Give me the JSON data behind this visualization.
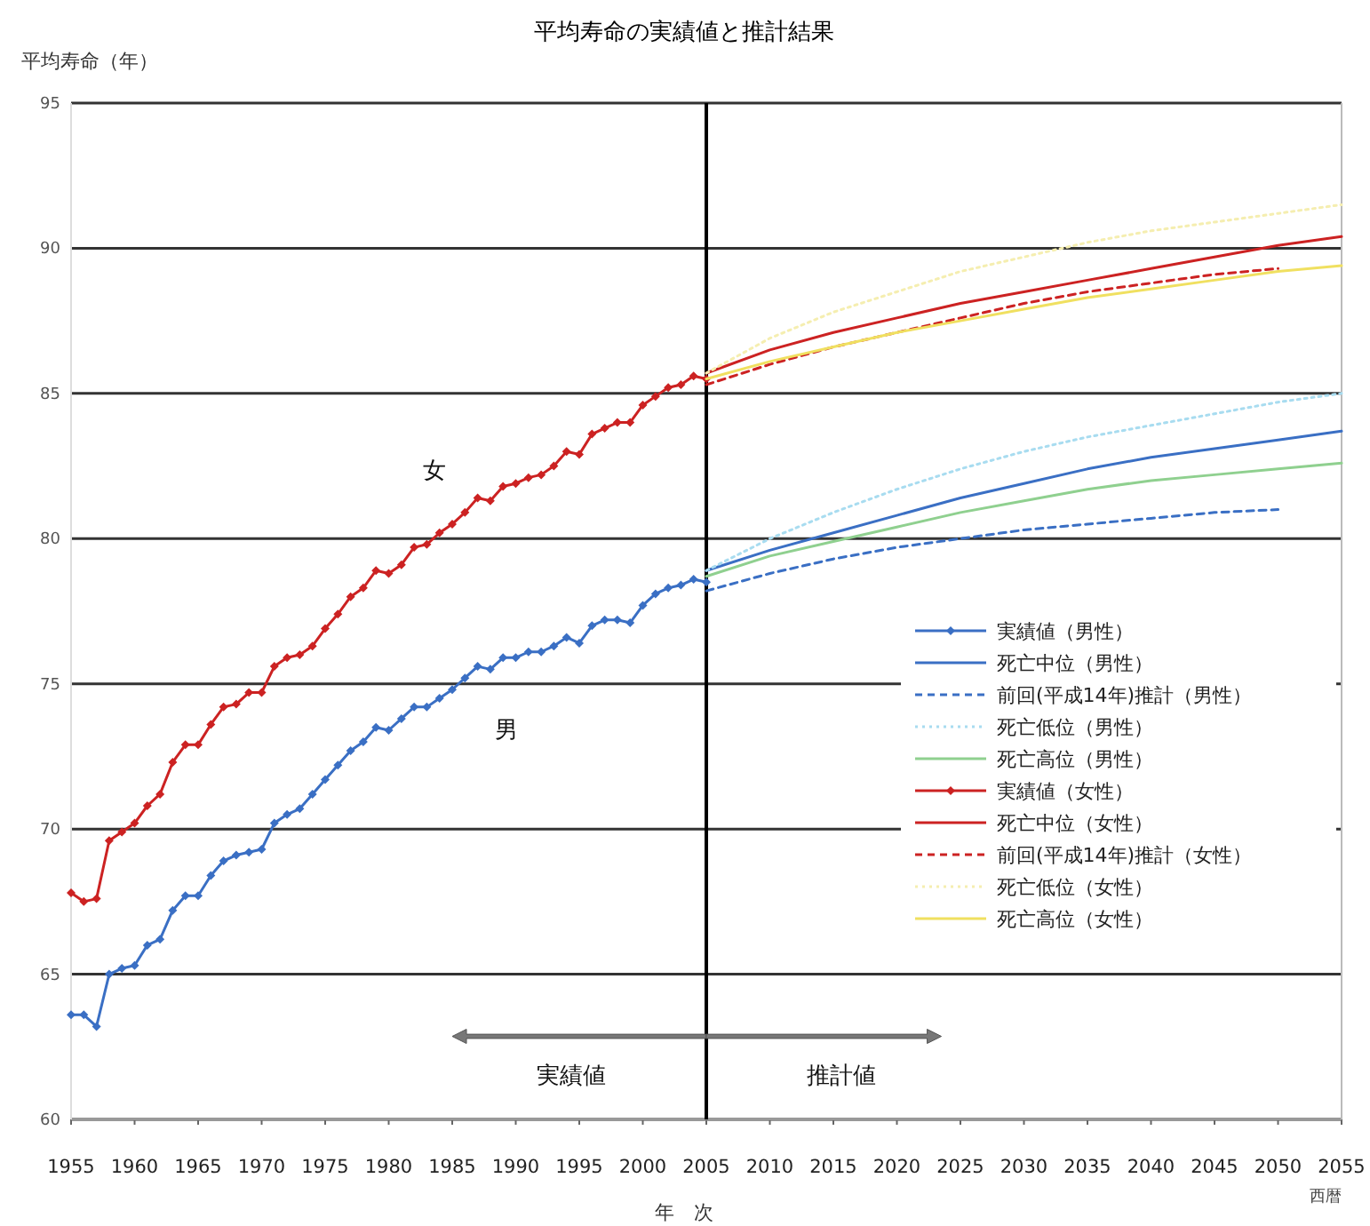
{
  "chart_data": {
    "type": "line",
    "title": "平均寿命の実績値と推計結果",
    "ylabel": "平均寿命（年）",
    "xlabel": "年　次",
    "xlim": [
      1955,
      2055
    ],
    "xticks": [
      1955,
      1960,
      1965,
      1970,
      1975,
      1980,
      1985,
      1990,
      1995,
      2000,
      2005,
      2010,
      2015,
      2020,
      2025,
      2030,
      2035,
      2040,
      2045,
      2050,
      2055
    ],
    "ylim": [
      60,
      95
    ],
    "yticks": [
      60,
      65,
      70,
      75,
      80,
      85,
      90,
      95
    ],
    "grid": "y",
    "legend": "right",
    "ref_lines": [
      {
        "axis": "x",
        "value": 2005,
        "color": "#000000"
      }
    ],
    "annotations": [
      "女",
      "男",
      "実績値",
      "推計値",
      "西暦"
    ],
    "series": [
      {
        "name": "実績値（男性）",
        "color": "#3a6fc4",
        "marker": "diamond",
        "x": [
          1955,
          1956,
          1957,
          1958,
          1959,
          1960,
          1961,
          1962,
          1963,
          1964,
          1965,
          1966,
          1967,
          1968,
          1969,
          1970,
          1971,
          1972,
          1973,
          1974,
          1975,
          1976,
          1977,
          1978,
          1979,
          1980,
          1981,
          1982,
          1983,
          1984,
          1985,
          1986,
          1987,
          1988,
          1989,
          1990,
          1991,
          1992,
          1993,
          1994,
          1995,
          1996,
          1997,
          1998,
          1999,
          2000,
          2001,
          2002,
          2003,
          2004,
          2005
        ],
        "values": [
          63.6,
          63.6,
          63.2,
          65.0,
          65.2,
          65.3,
          66.0,
          66.2,
          67.2,
          67.7,
          67.7,
          68.4,
          68.9,
          69.1,
          69.2,
          69.3,
          70.2,
          70.5,
          70.7,
          71.2,
          71.7,
          72.2,
          72.7,
          73.0,
          73.5,
          73.4,
          73.8,
          74.2,
          74.2,
          74.5,
          74.8,
          75.2,
          75.6,
          75.5,
          75.9,
          75.9,
          76.1,
          76.1,
          76.3,
          76.6,
          76.4,
          77.0,
          77.2,
          77.2,
          77.1,
          77.7,
          78.1,
          78.3,
          78.4,
          78.6,
          78.5
        ]
      },
      {
        "name": "死亡中位（男性）",
        "color": "#3a6fc4",
        "x": [
          2005,
          2010,
          2015,
          2020,
          2025,
          2030,
          2035,
          2040,
          2045,
          2050,
          2055
        ],
        "values": [
          78.9,
          79.6,
          80.2,
          80.8,
          81.4,
          81.9,
          82.4,
          82.8,
          83.1,
          83.4,
          83.7
        ]
      },
      {
        "name": "前回(平成14年)推計（男性）",
        "color": "#3a6fc4",
        "line_style": "dashed",
        "x": [
          2005,
          2010,
          2015,
          2020,
          2025,
          2030,
          2035,
          2040,
          2045,
          2050
        ],
        "values": [
          78.2,
          78.8,
          79.3,
          79.7,
          80.0,
          80.3,
          80.5,
          80.7,
          80.9,
          81.0
        ]
      },
      {
        "name": "死亡低位（男性）",
        "color": "#a8dcf0",
        "line_style": "dotted",
        "x": [
          2005,
          2010,
          2015,
          2020,
          2025,
          2030,
          2035,
          2040,
          2045,
          2050,
          2055
        ],
        "values": [
          78.9,
          80.0,
          80.9,
          81.7,
          82.4,
          83.0,
          83.5,
          83.9,
          84.3,
          84.7,
          85.0
        ]
      },
      {
        "name": "死亡高位（男性）",
        "color": "#8fd08f",
        "x": [
          2005,
          2010,
          2015,
          2020,
          2025,
          2030,
          2035,
          2040,
          2045,
          2050,
          2055
        ],
        "values": [
          78.7,
          79.4,
          79.9,
          80.4,
          80.9,
          81.3,
          81.7,
          82.0,
          82.2,
          82.4,
          82.6
        ]
      },
      {
        "name": "実績値（女性）",
        "color": "#cc2222",
        "marker": "diamond",
        "x": [
          1955,
          1956,
          1957,
          1958,
          1959,
          1960,
          1961,
          1962,
          1963,
          1964,
          1965,
          1966,
          1967,
          1968,
          1969,
          1970,
          1971,
          1972,
          1973,
          1974,
          1975,
          1976,
          1977,
          1978,
          1979,
          1980,
          1981,
          1982,
          1983,
          1984,
          1985,
          1986,
          1987,
          1988,
          1989,
          1990,
          1991,
          1992,
          1993,
          1994,
          1995,
          1996,
          1997,
          1998,
          1999,
          2000,
          2001,
          2002,
          2003,
          2004,
          2005
        ],
        "values": [
          67.8,
          67.5,
          67.6,
          69.6,
          69.9,
          70.2,
          70.8,
          71.2,
          72.3,
          72.9,
          72.9,
          73.6,
          74.2,
          74.3,
          74.7,
          74.7,
          75.6,
          75.9,
          76.0,
          76.3,
          76.9,
          77.4,
          78.0,
          78.3,
          78.9,
          78.8,
          79.1,
          79.7,
          79.8,
          80.2,
          80.5,
          80.9,
          81.4,
          81.3,
          81.8,
          81.9,
          82.1,
          82.2,
          82.5,
          83.0,
          82.9,
          83.6,
          83.8,
          84.0,
          84.0,
          84.6,
          84.9,
          85.2,
          85.3,
          85.6,
          85.5
        ]
      },
      {
        "name": "死亡中位（女性）",
        "color": "#cc2222",
        "x": [
          2005,
          2010,
          2015,
          2020,
          2025,
          2030,
          2035,
          2040,
          2045,
          2050,
          2055
        ],
        "values": [
          85.7,
          86.5,
          87.1,
          87.6,
          88.1,
          88.5,
          88.9,
          89.3,
          89.7,
          90.1,
          90.4
        ]
      },
      {
        "name": "前回(平成14年)推計（女性）",
        "color": "#cc2222",
        "line_style": "dashed",
        "x": [
          2005,
          2010,
          2015,
          2020,
          2025,
          2030,
          2035,
          2040,
          2045,
          2050
        ],
        "values": [
          85.3,
          86.0,
          86.6,
          87.1,
          87.6,
          88.1,
          88.5,
          88.8,
          89.1,
          89.3
        ]
      },
      {
        "name": "死亡低位（女性）",
        "color": "#f5eeb0",
        "line_style": "dotted",
        "x": [
          2005,
          2010,
          2015,
          2020,
          2025,
          2030,
          2035,
          2040,
          2045,
          2050,
          2055
        ],
        "values": [
          85.7,
          86.9,
          87.8,
          88.5,
          89.2,
          89.7,
          90.2,
          90.6,
          90.9,
          91.2,
          91.5
        ]
      },
      {
        "name": "死亡高位（女性）",
        "color": "#f0e060",
        "x": [
          2005,
          2010,
          2015,
          2020,
          2025,
          2030,
          2035,
          2040,
          2045,
          2050,
          2055
        ],
        "values": [
          85.5,
          86.1,
          86.6,
          87.1,
          87.5,
          87.9,
          88.3,
          88.6,
          88.9,
          89.2,
          89.4
        ]
      }
    ]
  }
}
